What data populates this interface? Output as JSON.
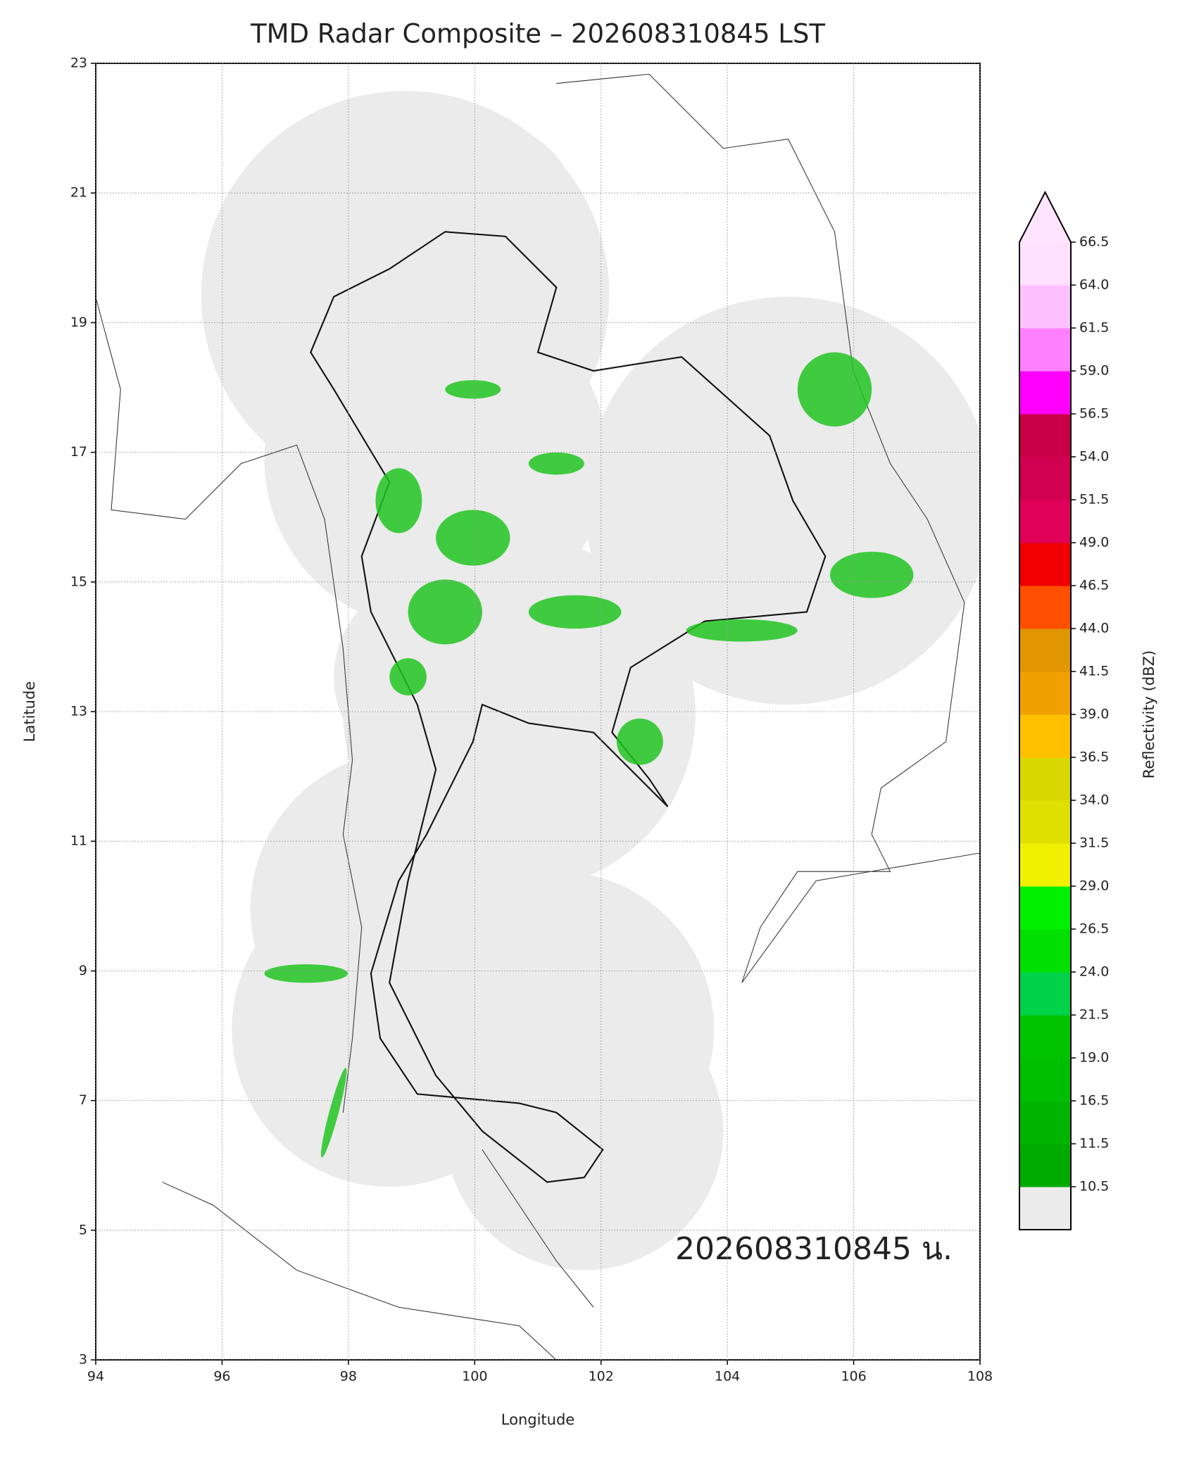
{
  "chart_data": {
    "type": "radar-map",
    "title": "TMD Radar Composite – 202608310845 LST",
    "xlabel": "Longitude",
    "ylabel": "Latitude",
    "annotation": "202608310845 น.",
    "xlim": [
      94,
      108
    ],
    "ylim": [
      3,
      23
    ],
    "xticks": [
      94,
      96,
      98,
      100,
      102,
      104,
      106,
      108
    ],
    "yticks": [
      3,
      5,
      7,
      9,
      11,
      13,
      15,
      17,
      19,
      21,
      23
    ],
    "grid": true,
    "colorbar": {
      "label": "Reflectivity (dBZ)",
      "ticks": [
        10.5,
        11.5,
        16.5,
        {
          "value": 19,
          "label": "19.0"
        },
        21.5,
        {
          "value": 24,
          "label": "24.0"
        },
        26.5,
        {
          "value": 29,
          "label": "29.0"
        },
        31.5,
        {
          "value": 34,
          "label": "34.0"
        },
        36.5,
        {
          "value": 39,
          "label": "39.0"
        },
        41.5,
        {
          "value": 44,
          "label": "44.0"
        },
        46.5,
        {
          "value": 49,
          "label": "49.0"
        },
        51.5,
        {
          "value": 54,
          "label": "54.0"
        },
        56.5,
        {
          "value": 59,
          "label": "59.0"
        },
        61.5,
        {
          "value": 64,
          "label": "64.0"
        },
        66.5
      ],
      "colors": [
        "#00aa00",
        "#00b400",
        "#00be00",
        "#00c400",
        "#00d24a",
        "#00e000",
        "#00f000",
        "#f0f000",
        "#e0e000",
        "#d8d800",
        "#ffc000",
        "#f0a000",
        "#e09600",
        "#ff5000",
        "#f00000",
        "#e0005a",
        "#d20050",
        "#c80046",
        "#ff00ff",
        "#ff80ff",
        "#ffc0ff",
        "#ffe0ff"
      ],
      "under_color": "#ebebeb",
      "over_color": "#ffe4ff"
    }
  }
}
